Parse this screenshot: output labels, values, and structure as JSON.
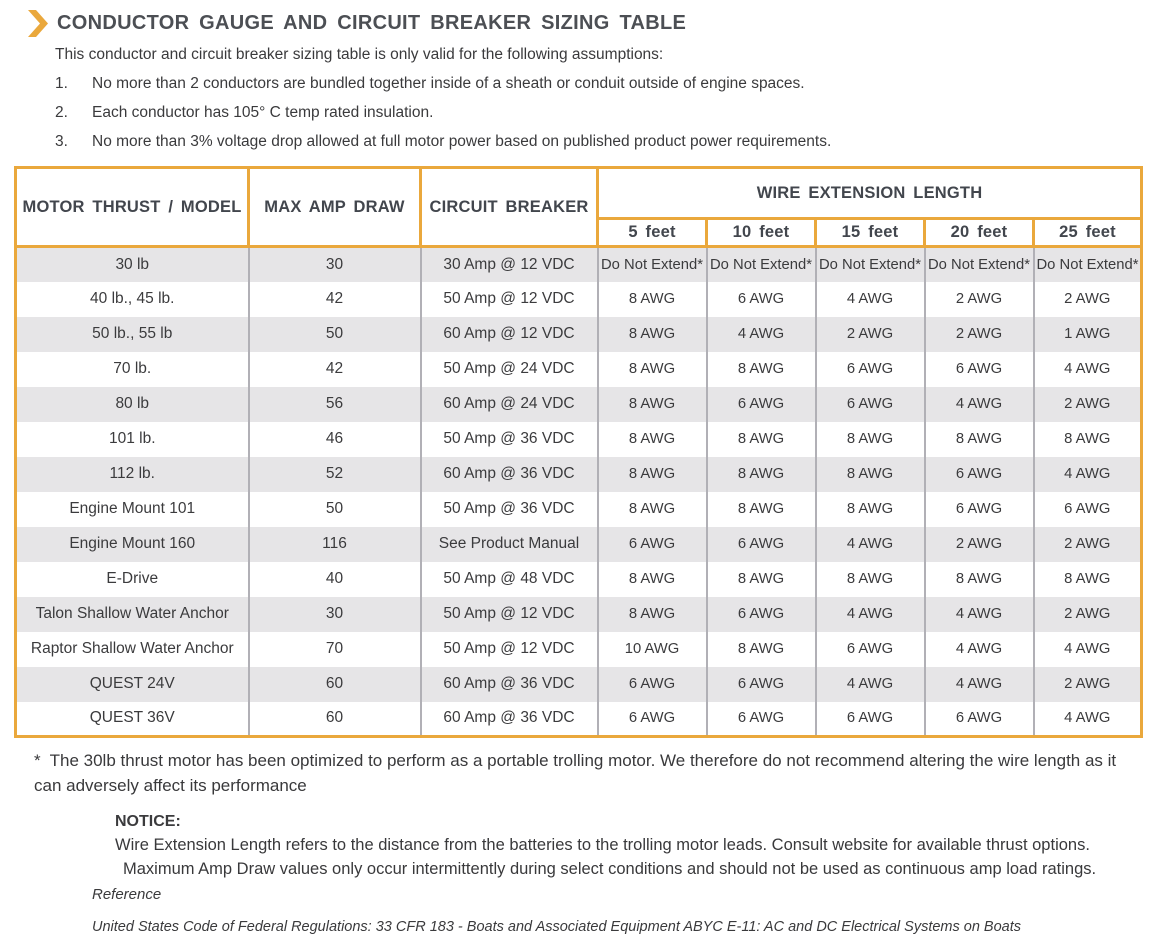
{
  "colors": {
    "accent_gold": "#EAA83C",
    "row_stripe_gray": "#E6E5E7",
    "cell_divider_gray": "#B1B0B6",
    "heading_text": "#4C4F54",
    "body_text": "#3B3B3D"
  },
  "header": {
    "title": "CONDUCTOR GAUGE AND CIRCUIT BREAKER SIZING TABLE",
    "chevron_icon": "chevron-right-icon",
    "intro": "This conductor and circuit breaker sizing table is only valid for the following assumptions:",
    "assumptions": [
      {
        "num": "1.",
        "text": "No more than 2 conductors are bundled together inside of a sheath or conduit outside of engine spaces."
      },
      {
        "num": "2.",
        "text": "Each conductor has 105° C temp rated insulation."
      },
      {
        "num": "3.",
        "text": "No more than 3% voltage drop allowed at full motor power based on published product power requirements."
      }
    ]
  },
  "table": {
    "columns": [
      "MOTOR THRUST / MODEL",
      "MAX AMP DRAW",
      "CIRCUIT BREAKER"
    ],
    "group_header": "WIRE EXTENSION LENGTH",
    "length_columns": [
      "5 feet",
      "10 feet",
      "15 feet",
      "20 feet",
      "25 feet"
    ],
    "rows": [
      {
        "model": "30 lb",
        "max_amp": "30",
        "breaker": "30 Amp @ 12 VDC",
        "ext": [
          "Do Not Extend*",
          "Do Not Extend*",
          "Do Not Extend*",
          "Do Not Extend*",
          "Do Not Extend*"
        ]
      },
      {
        "model": "40 lb., 45 lb.",
        "max_amp": "42",
        "breaker": "50 Amp @ 12 VDC",
        "ext": [
          "8 AWG",
          "6 AWG",
          "4 AWG",
          "2 AWG",
          "2 AWG"
        ]
      },
      {
        "model": "50 lb., 55 lb",
        "max_amp": "50",
        "breaker": "60 Amp @ 12 VDC",
        "ext": [
          "8 AWG",
          "4 AWG",
          "2 AWG",
          "2 AWG",
          "1 AWG"
        ]
      },
      {
        "model": "70 lb.",
        "max_amp": "42",
        "breaker": "50 Amp @ 24 VDC",
        "ext": [
          "8 AWG",
          "8 AWG",
          "6 AWG",
          "6 AWG",
          "4 AWG"
        ]
      },
      {
        "model": "80 lb",
        "max_amp": "56",
        "breaker": "60 Amp @ 24 VDC",
        "ext": [
          "8 AWG",
          "6 AWG",
          "6 AWG",
          "4 AWG",
          "2 AWG"
        ]
      },
      {
        "model": "101 lb.",
        "max_amp": "46",
        "breaker": "50 Amp @ 36 VDC",
        "ext": [
          "8 AWG",
          "8 AWG",
          "8 AWG",
          "8 AWG",
          "8 AWG"
        ]
      },
      {
        "model": "112 lb.",
        "max_amp": "52",
        "breaker": "60 Amp @ 36 VDC",
        "ext": [
          "8 AWG",
          "8 AWG",
          "8 AWG",
          "6 AWG",
          "4 AWG"
        ]
      },
      {
        "model": "Engine Mount 101",
        "max_amp": "50",
        "breaker": "50 Amp @ 36 VDC",
        "ext": [
          "8 AWG",
          "8 AWG",
          "8 AWG",
          "6 AWG",
          "6 AWG"
        ]
      },
      {
        "model": "Engine Mount 160",
        "max_amp": "116",
        "breaker": "See Product Manual",
        "ext": [
          "6 AWG",
          "6 AWG",
          "4 AWG",
          "2 AWG",
          "2 AWG"
        ]
      },
      {
        "model": "E-Drive",
        "max_amp": "40",
        "breaker": "50 Amp @ 48 VDC",
        "ext": [
          "8 AWG",
          "8 AWG",
          "8 AWG",
          "8 AWG",
          "8 AWG"
        ]
      },
      {
        "model": "Talon Shallow Water Anchor",
        "max_amp": "30",
        "breaker": "50 Amp @ 12 VDC",
        "ext": [
          "8 AWG",
          "6 AWG",
          "4 AWG",
          "4 AWG",
          "2 AWG"
        ]
      },
      {
        "model": "Raptor Shallow Water Anchor",
        "max_amp": "70",
        "breaker": "50 Amp @ 12 VDC",
        "ext": [
          "10 AWG",
          "8 AWG",
          "6 AWG",
          "4 AWG",
          "4 AWG"
        ]
      },
      {
        "model": "QUEST 24V",
        "max_amp": "60",
        "breaker": "60 Amp @ 36 VDC",
        "ext": [
          "6 AWG",
          "6 AWG",
          "4 AWG",
          "4 AWG",
          "2 AWG"
        ]
      },
      {
        "model": "QUEST 36V",
        "max_amp": "60",
        "breaker": "60 Amp @ 36 VDC",
        "ext": [
          "6 AWG",
          "6 AWG",
          "6 AWG",
          "6 AWG",
          "4 AWG"
        ]
      }
    ]
  },
  "footnote": {
    "marker": "*",
    "text": "The 30lb thrust motor has been optimized to perform as a portable trolling motor. We therefore do not recommend altering the wire length as it can adversely affect its performance"
  },
  "notice": {
    "label": "NOTICE:",
    "lines": [
      "Wire Extension Length refers to the distance from the batteries to the trolling motor leads. Consult website for available thrust options.",
      "Maximum Amp Draw values only occur intermittently during select conditions and should not be used as continuous amp load ratings."
    ]
  },
  "reference": {
    "label": "Reference",
    "text": "United States Code of Federal Regulations: 33 CFR 183 - Boats and Associated Equipment ABYC E-11: AC and DC Electrical Systems on Boats"
  }
}
